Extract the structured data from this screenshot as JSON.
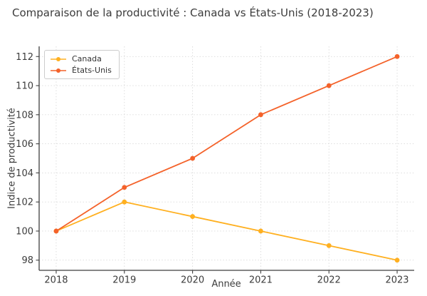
{
  "title": "Comparaison de la productivité : Canada vs États-Unis (2018-2023)",
  "chart_data": {
    "type": "line",
    "x": [
      2018,
      2019,
      2020,
      2021,
      2022,
      2023
    ],
    "series": [
      {
        "name": "Canada",
        "color": "#FFB020",
        "values": [
          100,
          102,
          101,
          100,
          99,
          98
        ]
      },
      {
        "name": "États-Unis",
        "color": "#F4622A",
        "values": [
          100,
          103,
          105,
          108,
          110,
          112
        ]
      }
    ],
    "xlabel": "Année",
    "ylabel": "Indice de productivité",
    "xticks": [
      2018,
      2019,
      2020,
      2021,
      2022,
      2023
    ],
    "yticks": [
      98,
      100,
      102,
      104,
      106,
      108,
      110,
      112
    ],
    "xlim": [
      2017.75,
      2023.25
    ],
    "ylim": [
      97.3,
      112.7
    ],
    "grid": true,
    "legend_position": "upper left",
    "colors": {
      "grid": "#d9d9d9",
      "spine": "#3f3f3f",
      "text": "#3c3c3c",
      "legend_border": "#cccccc",
      "background": "#ffffff"
    }
  }
}
